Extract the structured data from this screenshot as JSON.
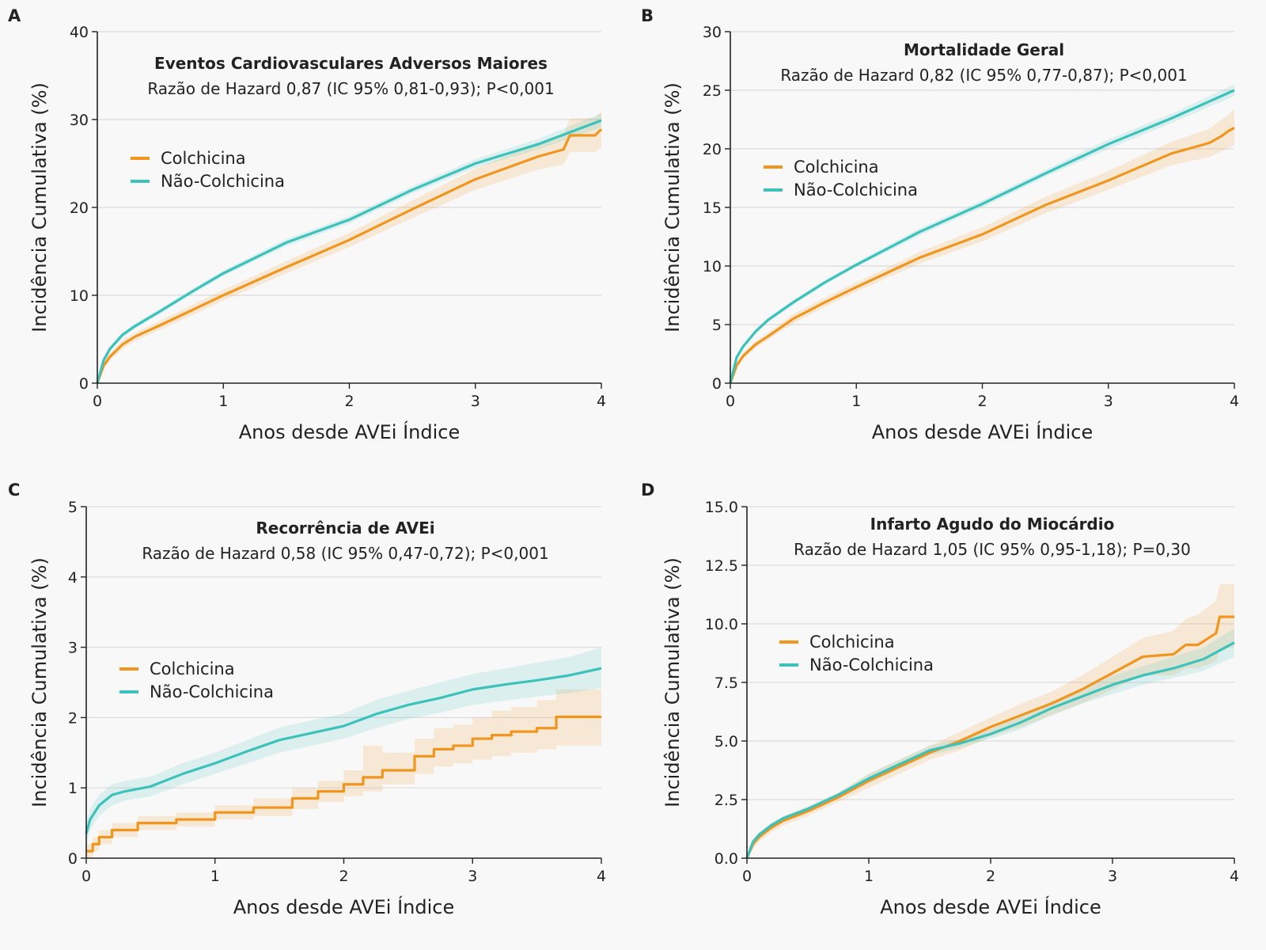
{
  "colors": {
    "colchicina": "#F0961E",
    "nao_colchicina": "#3CC2BA",
    "background": "#f8f8f8"
  },
  "chart_data": [
    {
      "panel": "A",
      "type": "line",
      "title": "Eventos Cardiovasculares Adversos Maiores",
      "subtitle": "Razão de Hazard 0,87 (IC 95% 0,81-0,93); P<0,001",
      "xlabel": "Anos desde AVEi Índice",
      "ylabel": "Incidência Cumulativa (%)",
      "xlim": [
        0,
        4
      ],
      "ylim": [
        0,
        40
      ],
      "xticks": [
        "0",
        "1",
        "2",
        "3",
        "4"
      ],
      "yticks": [
        "0",
        "10",
        "20",
        "30",
        "40"
      ],
      "ytick_values": [
        0,
        10,
        20,
        30,
        40
      ],
      "grid": true,
      "legend_placement": "upper-left",
      "legend": [
        "Colchicina",
        "Não-Colchicina"
      ],
      "series": [
        {
          "name": "Colchicina",
          "color": "#F0961E",
          "step": false,
          "x": [
            0,
            0.05,
            0.1,
            0.2,
            0.3,
            0.5,
            0.75,
            1.0,
            1.5,
            2.0,
            2.5,
            3.0,
            3.5,
            3.7,
            3.75,
            3.95,
            4.0
          ],
          "y": [
            0,
            2.0,
            3.0,
            4.4,
            5.3,
            6.6,
            8.3,
            10.0,
            13.2,
            16.3,
            19.8,
            23.2,
            25.8,
            26.6,
            28.2,
            28.2,
            28.9
          ],
          "lower": [
            0,
            1.6,
            2.6,
            3.9,
            4.8,
            6.1,
            7.7,
            9.4,
            12.5,
            15.5,
            18.8,
            22.0,
            24.3,
            24.9,
            26.3,
            26.3,
            26.8
          ],
          "upper": [
            0,
            2.4,
            3.4,
            4.9,
            5.8,
            7.1,
            8.9,
            10.6,
            13.9,
            17.1,
            20.8,
            24.4,
            27.3,
            28.3,
            30.1,
            30.2,
            31.0
          ]
        },
        {
          "name": "Não-Colchicina",
          "color": "#3CC2BA",
          "step": false,
          "x": [
            0,
            0.05,
            0.1,
            0.2,
            0.3,
            0.5,
            0.75,
            1.0,
            1.5,
            2.0,
            2.5,
            3.0,
            3.5,
            4.0
          ],
          "y": [
            0,
            2.6,
            3.9,
            5.5,
            6.5,
            8.2,
            10.4,
            12.5,
            16.0,
            18.6,
            22.0,
            25.0,
            27.2,
            29.9
          ],
          "lower": [
            0,
            2.3,
            3.6,
            5.2,
            6.2,
            7.9,
            10.1,
            12.2,
            15.6,
            18.2,
            21.6,
            24.5,
            26.6,
            29.1
          ],
          "upper": [
            0,
            2.9,
            4.2,
            5.8,
            6.8,
            8.5,
            10.7,
            12.8,
            16.4,
            19.0,
            22.4,
            25.5,
            27.8,
            30.7
          ]
        }
      ]
    },
    {
      "panel": "B",
      "type": "line",
      "title": "Mortalidade Geral",
      "subtitle": "Razão de Hazard 0,82 (IC 95% 0,77-0,87); P<0,001",
      "xlabel": "Anos desde AVEi Índice",
      "ylabel": "Incidência Cumulativa (%)",
      "xlim": [
        0,
        4
      ],
      "ylim": [
        0,
        30
      ],
      "xticks": [
        "0",
        "1",
        "2",
        "3",
        "4"
      ],
      "yticks": [
        "0",
        "5",
        "10",
        "15",
        "20",
        "25",
        "30"
      ],
      "ytick_values": [
        0,
        5,
        10,
        15,
        20,
        25,
        30
      ],
      "grid": true,
      "legend_placement": "upper-left",
      "legend": [
        "Colchicina",
        "Não-Colchicina"
      ],
      "series": [
        {
          "name": "Colchicina",
          "color": "#F0961E",
          "step": false,
          "x": [
            0,
            0.05,
            0.1,
            0.2,
            0.3,
            0.5,
            0.75,
            1.0,
            1.5,
            2.0,
            2.5,
            3.0,
            3.5,
            3.8,
            3.9,
            3.95,
            4.0
          ],
          "y": [
            0,
            1.5,
            2.3,
            3.3,
            4.0,
            5.5,
            6.9,
            8.2,
            10.7,
            12.7,
            15.2,
            17.3,
            19.6,
            20.5,
            21.1,
            21.5,
            21.8
          ],
          "lower": [
            0,
            1.3,
            2.0,
            3.0,
            3.7,
            5.1,
            6.5,
            7.8,
            10.2,
            12.1,
            14.5,
            16.5,
            18.6,
            19.3,
            19.8,
            20.1,
            20.3
          ],
          "upper": [
            0,
            1.7,
            2.6,
            3.6,
            4.3,
            5.9,
            7.3,
            8.6,
            11.2,
            13.3,
            15.9,
            18.1,
            20.6,
            21.7,
            22.5,
            22.9,
            23.4
          ]
        },
        {
          "name": "Não-Colchicina",
          "color": "#3CC2BA",
          "step": false,
          "x": [
            0,
            0.05,
            0.1,
            0.2,
            0.3,
            0.5,
            0.75,
            1.0,
            1.5,
            2.0,
            2.5,
            3.0,
            3.5,
            4.0
          ],
          "y": [
            0,
            2.2,
            3.1,
            4.4,
            5.4,
            6.9,
            8.6,
            10.1,
            12.9,
            15.3,
            17.9,
            20.4,
            22.6,
            25.0
          ],
          "lower": [
            0,
            2.0,
            2.9,
            4.2,
            5.2,
            6.7,
            8.4,
            9.9,
            12.6,
            15.0,
            17.6,
            20.0,
            22.2,
            24.5
          ],
          "upper": [
            0,
            2.4,
            3.3,
            4.6,
            5.6,
            7.1,
            8.8,
            10.3,
            13.2,
            15.6,
            18.2,
            20.8,
            23.0,
            25.5
          ]
        }
      ]
    },
    {
      "panel": "C",
      "type": "line",
      "title": "Recorrência de AVEi",
      "subtitle": "Razão de Hazard 0,58 (IC 95% 0,47-0,72); P<0,001",
      "xlabel": "Anos desde AVEi Índice",
      "ylabel": "Incidência Cumulativa (%)",
      "xlim": [
        0,
        4
      ],
      "ylim": [
        0,
        5
      ],
      "xticks": [
        "0",
        "1",
        "2",
        "3",
        "4"
      ],
      "yticks": [
        "0",
        "1",
        "2",
        "3",
        "4",
        "5"
      ],
      "ytick_values": [
        0,
        1,
        2,
        3,
        4,
        5
      ],
      "grid": true,
      "legend_placement": "center-left",
      "legend": [
        "Colchicina",
        "Não-Colchicina"
      ],
      "series": [
        {
          "name": "Colchicina",
          "color": "#F0961E",
          "step": true,
          "x": [
            0,
            0.05,
            0.1,
            0.2,
            0.4,
            0.7,
            1.0,
            1.3,
            1.6,
            1.8,
            2.0,
            2.15,
            2.3,
            2.55,
            2.7,
            2.85,
            3.0,
            3.15,
            3.3,
            3.5,
            3.65,
            4.0
          ],
          "y": [
            0.1,
            0.2,
            0.3,
            0.4,
            0.5,
            0.55,
            0.65,
            0.72,
            0.85,
            0.95,
            1.05,
            1.15,
            1.25,
            1.45,
            1.55,
            1.6,
            1.7,
            1.75,
            1.8,
            1.85,
            2.01,
            2.01
          ],
          "lower": [
            0,
            0.1,
            0.2,
            0.3,
            0.4,
            0.45,
            0.55,
            0.6,
            0.7,
            0.8,
            0.88,
            0.95,
            1.05,
            1.2,
            1.3,
            1.35,
            1.4,
            1.45,
            1.5,
            1.55,
            1.6,
            1.6
          ],
          "upper": [
            0.2,
            0.3,
            0.4,
            0.5,
            0.6,
            0.65,
            0.75,
            0.85,
            1.0,
            1.1,
            1.25,
            1.6,
            1.5,
            1.7,
            1.85,
            1.9,
            2.0,
            2.1,
            2.15,
            2.25,
            2.4,
            2.45
          ]
        },
        {
          "name": "Não-Colchicina",
          "color": "#3CC2BA",
          "step": false,
          "x": [
            0,
            0.03,
            0.1,
            0.2,
            0.3,
            0.5,
            0.75,
            1.0,
            1.25,
            1.5,
            1.75,
            2.0,
            2.25,
            2.5,
            2.75,
            3.0,
            3.25,
            3.5,
            3.75,
            4.0
          ],
          "y": [
            0.35,
            0.55,
            0.75,
            0.9,
            0.95,
            1.02,
            1.2,
            1.35,
            1.52,
            1.68,
            1.78,
            1.88,
            2.05,
            2.18,
            2.28,
            2.4,
            2.47,
            2.53,
            2.6,
            2.7
          ],
          "lower": [
            0.2,
            0.4,
            0.6,
            0.75,
            0.82,
            0.88,
            1.05,
            1.2,
            1.35,
            1.5,
            1.6,
            1.7,
            1.85,
            1.98,
            2.07,
            2.18,
            2.24,
            2.3,
            2.35,
            2.42
          ],
          "upper": [
            0.5,
            0.7,
            0.9,
            1.05,
            1.1,
            1.16,
            1.35,
            1.5,
            1.68,
            1.86,
            1.96,
            2.06,
            2.25,
            2.38,
            2.5,
            2.62,
            2.7,
            2.78,
            2.86,
            3.0
          ]
        }
      ]
    },
    {
      "panel": "D",
      "type": "line",
      "title": "Infarto Agudo do Miocárdio",
      "subtitle": "Razão de Hazard 1,05 (IC 95% 0,95-1,18); P=0,30",
      "xlabel": "Anos desde AVEi Índice",
      "ylabel": "Incidência Cumulativa (%)",
      "xlim": [
        0,
        4
      ],
      "ylim": [
        0,
        15
      ],
      "xticks": [
        "0",
        "1",
        "2",
        "3",
        "4"
      ],
      "yticks": [
        "0.0",
        "2.5",
        "5.0",
        "7.5",
        "10.0",
        "12.5",
        "15.0"
      ],
      "ytick_values": [
        0,
        2.5,
        5,
        7.5,
        10,
        12.5,
        15
      ],
      "grid": true,
      "legend_placement": "upper-left",
      "legend": [
        "Colchicina",
        "Não-Colchicina"
      ],
      "series": [
        {
          "name": "Colchicina",
          "color": "#F0961E",
          "step": false,
          "x": [
            0,
            0.05,
            0.1,
            0.2,
            0.3,
            0.5,
            0.75,
            1.0,
            1.25,
            1.5,
            1.75,
            2.0,
            2.25,
            2.5,
            2.75,
            3.0,
            3.25,
            3.5,
            3.6,
            3.7,
            3.85,
            3.88,
            4.0
          ],
          "y": [
            0,
            0.6,
            0.9,
            1.3,
            1.6,
            2.0,
            2.6,
            3.3,
            3.9,
            4.5,
            5.0,
            5.6,
            6.1,
            6.6,
            7.2,
            7.9,
            8.6,
            8.7,
            9.1,
            9.1,
            9.6,
            10.3,
            10.3
          ],
          "lower": [
            0,
            0.4,
            0.7,
            1.1,
            1.4,
            1.8,
            2.4,
            3.0,
            3.6,
            4.2,
            4.6,
            5.2,
            5.6,
            6.1,
            6.6,
            7.2,
            7.8,
            7.8,
            8.1,
            8.1,
            8.4,
            8.9,
            9.0
          ],
          "upper": [
            0,
            0.8,
            1.1,
            1.5,
            1.8,
            2.2,
            2.8,
            3.6,
            4.2,
            4.8,
            5.4,
            6.0,
            6.6,
            7.1,
            7.8,
            8.6,
            9.4,
            9.7,
            10.2,
            10.4,
            11.0,
            11.7,
            11.7
          ]
        },
        {
          "name": "Não-Colchicina",
          "color": "#3CC2BA",
          "step": false,
          "x": [
            0,
            0.05,
            0.1,
            0.2,
            0.3,
            0.5,
            0.75,
            1.0,
            1.25,
            1.5,
            1.75,
            2.0,
            2.25,
            2.5,
            2.75,
            3.0,
            3.25,
            3.5,
            3.75,
            4.0
          ],
          "y": [
            0,
            0.7,
            1.0,
            1.4,
            1.7,
            2.1,
            2.7,
            3.4,
            4.0,
            4.6,
            4.9,
            5.3,
            5.8,
            6.4,
            6.9,
            7.4,
            7.8,
            8.1,
            8.5,
            9.2
          ],
          "lower": [
            0,
            0.6,
            0.9,
            1.3,
            1.6,
            2.0,
            2.6,
            3.2,
            3.8,
            4.4,
            4.7,
            5.1,
            5.5,
            6.1,
            6.6,
            7.0,
            7.4,
            7.7,
            8.0,
            8.6
          ],
          "upper": [
            0,
            0.8,
            1.1,
            1.5,
            1.8,
            2.2,
            2.8,
            3.6,
            4.2,
            4.8,
            5.1,
            5.5,
            6.1,
            6.7,
            7.2,
            7.8,
            8.2,
            8.6,
            9.0,
            9.8
          ]
        }
      ]
    }
  ]
}
